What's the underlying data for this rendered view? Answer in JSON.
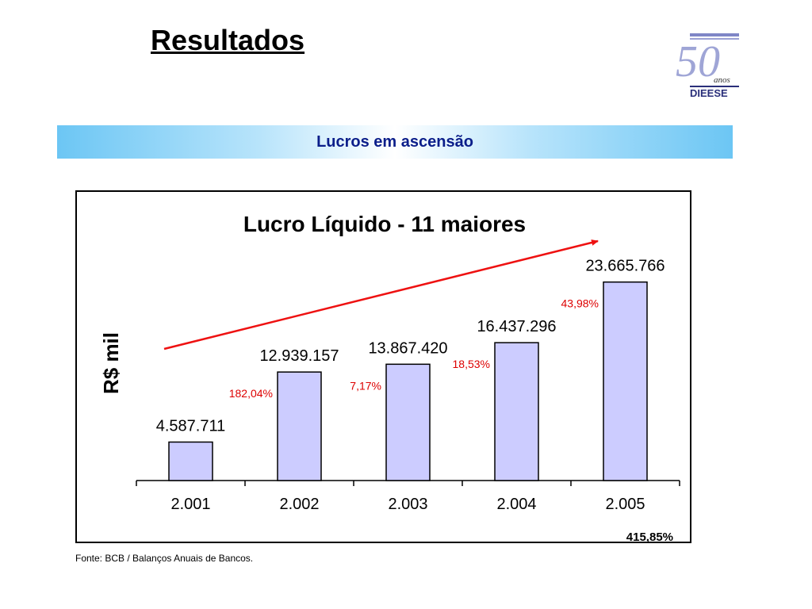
{
  "page": {
    "title": "Resultados",
    "banner": "Lucros em ascensão",
    "source": "Fonte: BCB / Balanços Anuais de Bancos."
  },
  "logo": {
    "number": "50",
    "sub": "anos",
    "brand": "DIEESE"
  },
  "colors": {
    "bar_fill": "#ccccff",
    "bar_stroke": "#000000",
    "growth_label": "#dd0000",
    "arrow": "#ee1111",
    "banner_text": "#0b1e8a"
  },
  "chart_data": {
    "type": "bar",
    "title": "Lucro Líquido - 11 maiores",
    "ylabel": "R$ mil",
    "xlabel": "",
    "categories": [
      "2.001",
      "2.002",
      "2.003",
      "2.004",
      "2.005"
    ],
    "values": [
      4587711,
      12939157,
      13867420,
      16437296,
      23665766
    ],
    "value_labels": [
      "4.587.711",
      "12.939.157",
      "13.867.420",
      "16.437.296",
      "23.665.766"
    ],
    "growth_labels": [
      "",
      "182,04%",
      "7,17%",
      "18,53%",
      "43,98%"
    ],
    "total_growth": "415,85%",
    "ylim": [
      0,
      26000000
    ],
    "grid": false,
    "legend": "none",
    "trend_arrow": true
  }
}
